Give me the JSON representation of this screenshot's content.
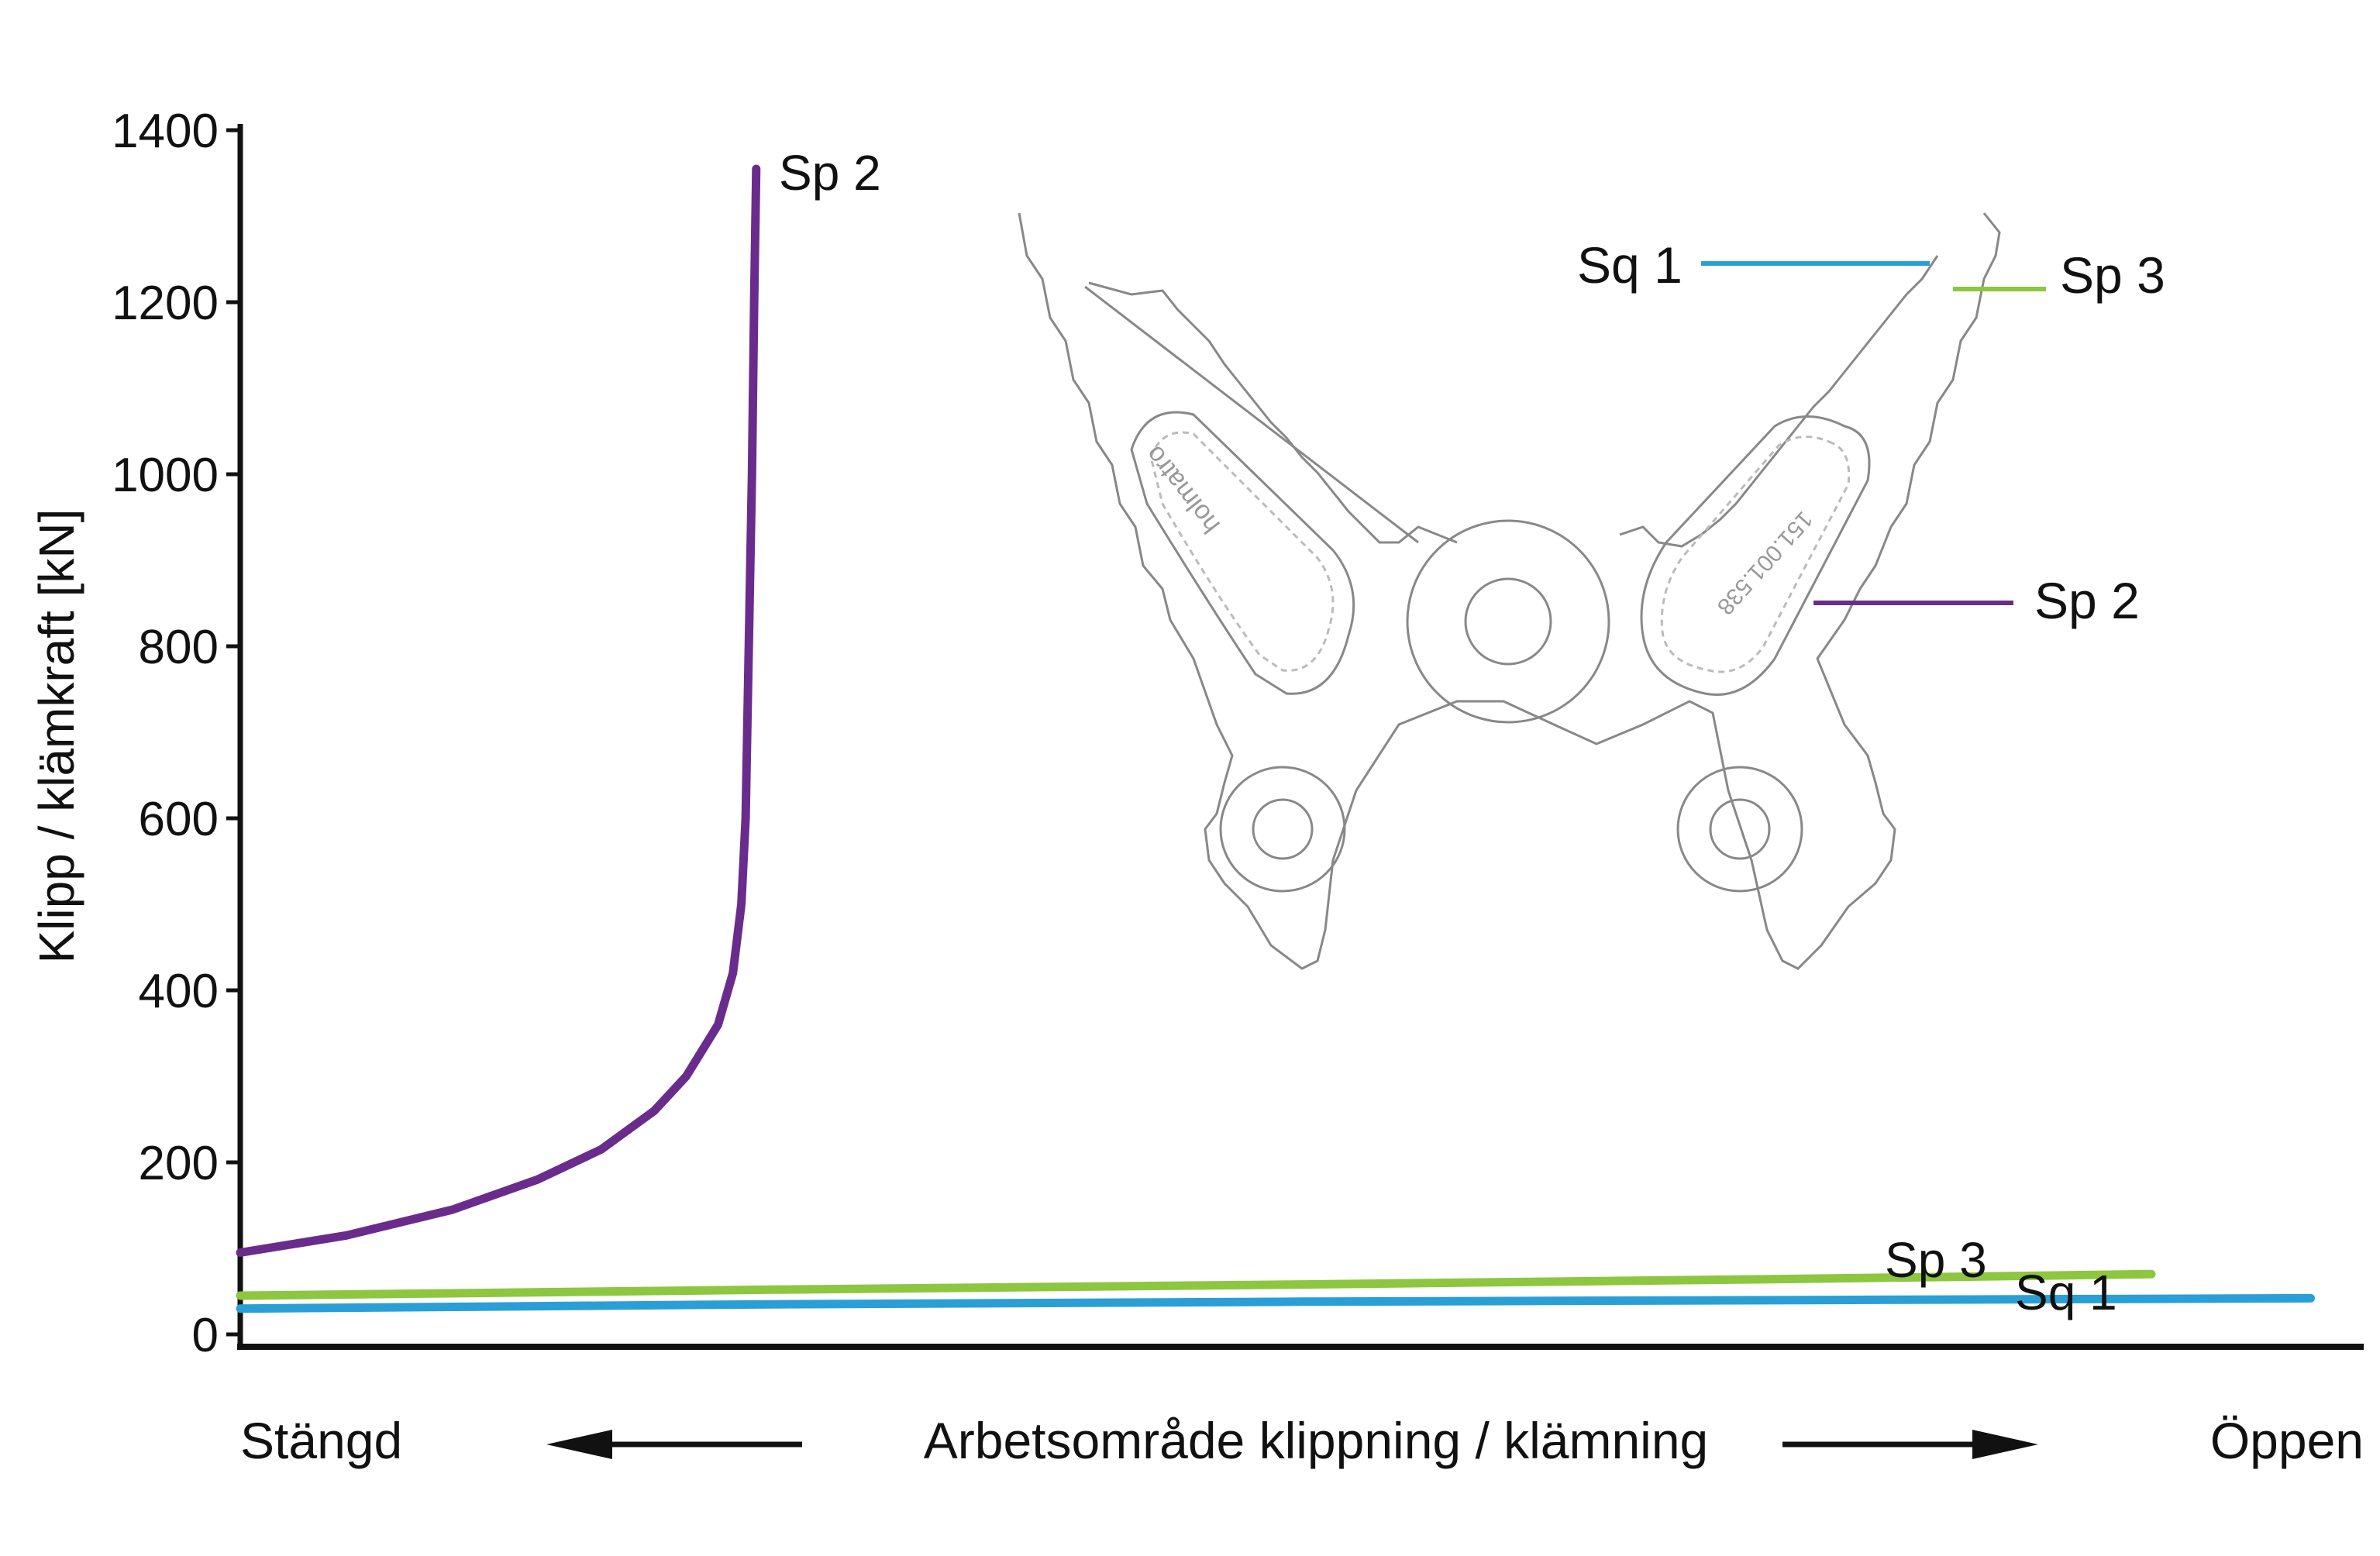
{
  "chart_data": {
    "type": "line",
    "ylabel": "Klipp / klämkraft [kN]",
    "xlabel": "Arbetsområde klippning / klämning",
    "x_left_label": "Stängd",
    "x_right_label": "Öppen",
    "ylim": [
      0,
      1400
    ],
    "xlim": [
      0,
      1
    ],
    "yticks": [
      "0",
      "200",
      "400",
      "600",
      "800",
      "1000",
      "1200",
      "1400"
    ],
    "grid": false,
    "series": [
      {
        "name": "Sp 2",
        "color": "#6a2c8c",
        "x": [
          0,
          0.05,
          0.1,
          0.14,
          0.17,
          0.195,
          0.21,
          0.225,
          0.232,
          0.236,
          0.238,
          0.2395,
          0.241,
          0.242,
          0.243
        ],
        "y": [
          95,
          115,
          145,
          180,
          215,
          260,
          300,
          360,
          420,
          500,
          600,
          800,
          1000,
          1200,
          1355
        ]
      },
      {
        "name": "Sp 3",
        "color": "#8dc63f",
        "x": [
          0,
          0.25,
          0.5,
          0.75,
          0.9
        ],
        "y": [
          45,
          52,
          58,
          65,
          70
        ]
      },
      {
        "name": "Sq 1",
        "color": "#2a9fd6",
        "x": [
          0,
          0.25,
          0.5,
          0.75,
          0.975
        ],
        "y": [
          30,
          35,
          38,
          40,
          42
        ]
      }
    ],
    "inset": {
      "stamp_text": "holmatro",
      "part_number": "151.001.538",
      "callouts": [
        {
          "label": "Sq 1",
          "color": "#2a9fd6"
        },
        {
          "label": "Sp 3",
          "color": "#8dc63f"
        },
        {
          "label": "Sp 2",
          "color": "#6a2c8c"
        }
      ]
    }
  }
}
